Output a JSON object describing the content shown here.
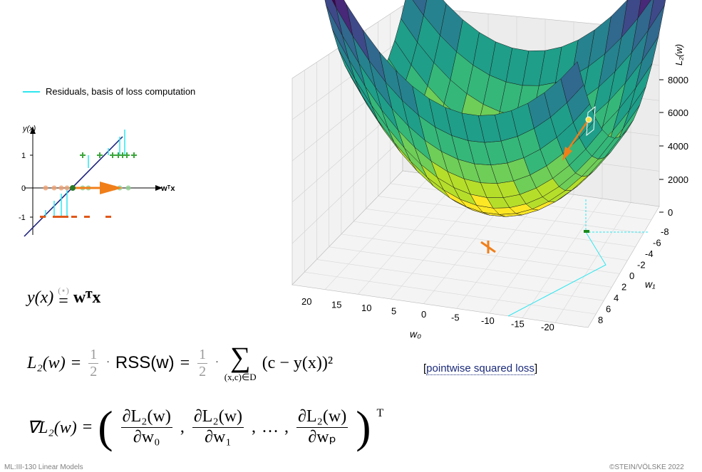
{
  "legend": {
    "label": "Residuals, basis of loss computation"
  },
  "small_plot": {
    "ylabel": "y(x)",
    "xlabel": "wᵀx",
    "yticks": [
      "1",
      "0",
      "-1"
    ]
  },
  "surface_plot": {
    "zlabel": "L₂(w)",
    "z_ticks": [
      "8000",
      "6000",
      "4000",
      "2000",
      "0"
    ],
    "w0_label": "w₀",
    "w0_ticks": [
      "20",
      "15",
      "10",
      "5",
      "0",
      "-5",
      "-10",
      "-15",
      "-20"
    ],
    "w1_label": "w₁",
    "w1_ticks": [
      "-8",
      "-6",
      "-4",
      "-2",
      "0",
      "2",
      "4",
      "6",
      "8"
    ]
  },
  "equations": {
    "eq1_lhs": "y(x)",
    "eq1_rel": "(⋆)",
    "eq1_rhs": "wᵀx",
    "eq2_lhs": "L₂(w)",
    "eq2_half": "1",
    "eq2_two": "2",
    "eq2_rss": "RSS(w)",
    "eq2_sum_sub": "(x,c)∈D",
    "eq2_term": "(c − y(x))²",
    "eq3_lhs": "∇L₂(w)",
    "eq3_num": "∂L₂(w)",
    "eq3_d0": "∂w₀",
    "eq3_d1": "∂w₁",
    "eq3_dp": "∂wₚ",
    "eq3_dots": "…",
    "eq3_T": "T"
  },
  "note": {
    "text": "pointwise squared loss"
  },
  "footer": {
    "left": "ML:III-130   Linear Models",
    "right": "©STEIN/VÖLSKE 2022"
  },
  "colors": {
    "residual": "#2ee6f0",
    "orange": "#f07f1a",
    "green": "#3aa63a",
    "navy": "#1b1f7a"
  }
}
